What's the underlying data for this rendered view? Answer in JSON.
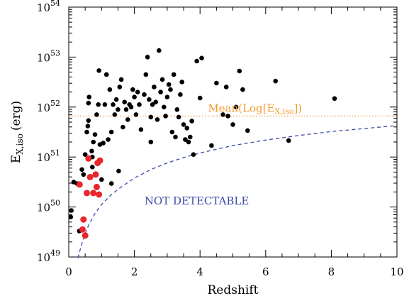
{
  "chart_data": {
    "type": "scatter",
    "xlabel": "Redshift",
    "ylabel": "E",
    "ylabel_sub": "X,iso",
    "ylabel_unit": "(erg)",
    "xlim": [
      0,
      10
    ],
    "ylim": [
      49,
      54
    ],
    "y_scale": "log",
    "x_ticks": [
      0,
      2,
      4,
      6,
      8,
      10
    ],
    "y_ticks": [
      49,
      50,
      51,
      52,
      53,
      54
    ],
    "y_tick_base": "10",
    "mean_line": {
      "label_prefix": "Mean(Log[E",
      "label_sub": "X,iso",
      "label_suffix": "])",
      "log_value": 51.82,
      "color": "#f29a2e"
    },
    "detection_limit": {
      "label": "NOT DETECTABLE",
      "color": "#3b4aa8",
      "points": [
        [
          0.28,
          48.98
        ],
        [
          0.35,
          49.15
        ],
        [
          0.45,
          49.38
        ],
        [
          0.6,
          49.63
        ],
        [
          0.8,
          49.87
        ],
        [
          1.0,
          50.05
        ],
        [
          1.3,
          50.25
        ],
        [
          1.6,
          50.4
        ],
        [
          2.0,
          50.58
        ],
        [
          2.5,
          50.75
        ],
        [
          3.0,
          50.88
        ],
        [
          3.5,
          50.99
        ],
        [
          4.0,
          51.08
        ],
        [
          5.0,
          51.23
        ],
        [
          6.0,
          51.34
        ],
        [
          7.0,
          51.43
        ],
        [
          8.0,
          51.51
        ],
        [
          9.0,
          51.57
        ],
        [
          10.0,
          51.63
        ]
      ]
    },
    "series": [
      {
        "color": "#000000",
        "points": [
          [
            0.06,
            49.8
          ],
          [
            0.08,
            49.93
          ],
          [
            0.15,
            50.5
          ],
          [
            0.25,
            50.47
          ],
          [
            0.32,
            49.52
          ],
          [
            0.4,
            50.75
          ],
          [
            0.45,
            50.65
          ],
          [
            0.5,
            51.05
          ],
          [
            0.55,
            51.5
          ],
          [
            0.58,
            51.62
          ],
          [
            0.6,
            51.73
          ],
          [
            0.6,
            52.08
          ],
          [
            0.62,
            52.2
          ],
          [
            0.7,
            51.12
          ],
          [
            0.72,
            51.0
          ],
          [
            0.72,
            50.8
          ],
          [
            0.75,
            51.3
          ],
          [
            0.8,
            51.45
          ],
          [
            0.85,
            51.85
          ],
          [
            0.9,
            52.05
          ],
          [
            0.92,
            52.73
          ],
          [
            0.95,
            51.25
          ],
          [
            1.0,
            50.55
          ],
          [
            1.05,
            51.28
          ],
          [
            1.1,
            52.05
          ],
          [
            1.15,
            52.65
          ],
          [
            1.2,
            51.35
          ],
          [
            1.25,
            52.35
          ],
          [
            1.3,
            51.5
          ],
          [
            1.3,
            50.47
          ],
          [
            1.35,
            52.05
          ],
          [
            1.4,
            51.85
          ],
          [
            1.45,
            52.15
          ],
          [
            1.5,
            51.95
          ],
          [
            1.52,
            50.72
          ],
          [
            1.55,
            52.4
          ],
          [
            1.6,
            52.55
          ],
          [
            1.65,
            51.6
          ],
          [
            1.7,
            52.1
          ],
          [
            1.75,
            51.95
          ],
          [
            1.8,
            51.75
          ],
          [
            1.85,
            52.05
          ],
          [
            1.9,
            52.0
          ],
          [
            1.95,
            52.35
          ],
          [
            2.0,
            52.2
          ],
          [
            2.05,
            51.85
          ],
          [
            2.1,
            52.3
          ],
          [
            2.15,
            52.05
          ],
          [
            2.2,
            51.55
          ],
          [
            2.3,
            52.25
          ],
          [
            2.35,
            52.65
          ],
          [
            2.4,
            53.0
          ],
          [
            2.45,
            52.15
          ],
          [
            2.5,
            51.8
          ],
          [
            2.5,
            51.3
          ],
          [
            2.55,
            52.05
          ],
          [
            2.6,
            52.4
          ],
          [
            2.65,
            52.1
          ],
          [
            2.7,
            51.75
          ],
          [
            2.75,
            53.13
          ],
          [
            2.8,
            52.3
          ],
          [
            2.85,
            52.55
          ],
          [
            2.9,
            52.0
          ],
          [
            2.95,
            51.82
          ],
          [
            3.0,
            52.2
          ],
          [
            3.05,
            52.45
          ],
          [
            3.1,
            52.35
          ],
          [
            3.15,
            51.5
          ],
          [
            3.2,
            52.65
          ],
          [
            3.25,
            51.4
          ],
          [
            3.3,
            51.95
          ],
          [
            3.35,
            51.8
          ],
          [
            3.4,
            52.25
          ],
          [
            3.45,
            52.5
          ],
          [
            3.5,
            51.65
          ],
          [
            3.55,
            51.35
          ],
          [
            3.6,
            51.58
          ],
          [
            3.65,
            51.3
          ],
          [
            3.7,
            51.4
          ],
          [
            3.75,
            51.72
          ],
          [
            3.8,
            51.05
          ],
          [
            3.9,
            52.92
          ],
          [
            4.0,
            52.18
          ],
          [
            4.05,
            52.98
          ],
          [
            4.35,
            51.23
          ],
          [
            4.5,
            52.48
          ],
          [
            4.7,
            51.85
          ],
          [
            4.8,
            52.4
          ],
          [
            4.85,
            51.82
          ],
          [
            5.0,
            51.65
          ],
          [
            5.1,
            52.0
          ],
          [
            5.2,
            52.72
          ],
          [
            5.3,
            52.35
          ],
          [
            5.45,
            51.53
          ],
          [
            6.3,
            52.52
          ],
          [
            6.7,
            51.33
          ],
          [
            8.1,
            52.17
          ]
        ]
      },
      {
        "color": "#e8262c",
        "points": [
          [
            0.33,
            50.45
          ],
          [
            0.42,
            49.55
          ],
          [
            0.45,
            49.75
          ],
          [
            0.5,
            49.43
          ],
          [
            0.55,
            50.28
          ],
          [
            0.6,
            50.97
          ],
          [
            0.65,
            50.6
          ],
          [
            0.75,
            50.28
          ],
          [
            0.82,
            50.65
          ],
          [
            0.85,
            50.4
          ],
          [
            0.88,
            50.88
          ],
          [
            0.92,
            50.25
          ],
          [
            0.95,
            50.93
          ]
        ]
      }
    ]
  }
}
